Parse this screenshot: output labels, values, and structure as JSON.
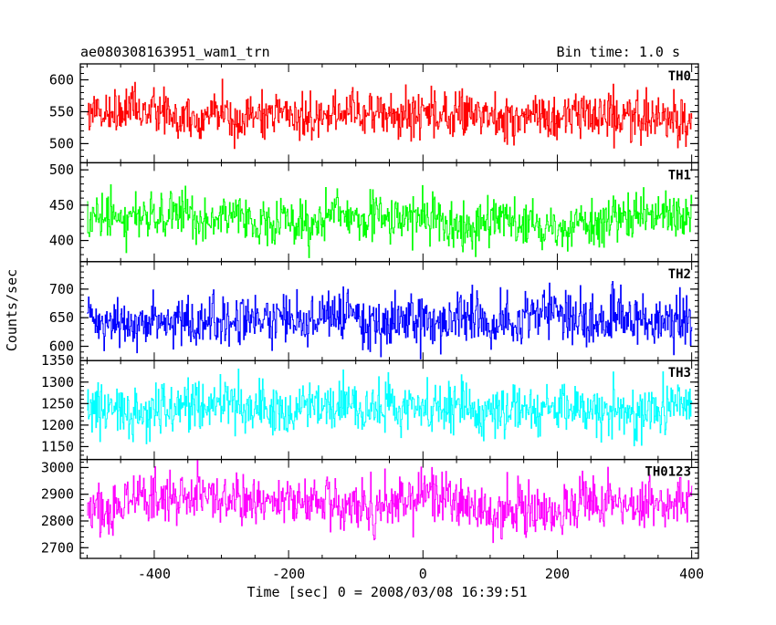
{
  "header": {
    "title": "ae080308163951_wam1_trn",
    "bin_time": "Bin time: 1.0 s"
  },
  "chart_data": {
    "type": "line",
    "xlabel": "Time [sec] 0 = 2008/03/08 16:39:51",
    "ylabel": "Counts/sec",
    "xlim": [
      -510,
      410
    ],
    "xticks": [
      -400,
      -200,
      0,
      200,
      400
    ],
    "x_start": -500,
    "x_end": 400,
    "x_step": 1,
    "panels": [
      {
        "name": "TH0",
        "color": "#ff0000",
        "ylim": [
          470,
          625
        ],
        "yticks": [
          500,
          550,
          600
        ],
        "mean": 545,
        "spread": 20
      },
      {
        "name": "TH1",
        "color": "#00ff00",
        "ylim": [
          370,
          510
        ],
        "yticks": [
          400,
          450,
          500
        ],
        "mean": 430,
        "spread": 18
      },
      {
        "name": "TH2",
        "color": "#0000ff",
        "ylim": [
          575,
          748
        ],
        "yticks": [
          600,
          650,
          700
        ],
        "mean": 650,
        "spread": 25
      },
      {
        "name": "TH3",
        "color": "#00ffff",
        "ylim": [
          1120,
          1350
        ],
        "yticks": [
          1150,
          1200,
          1250,
          1300,
          1350
        ],
        "mean": 1240,
        "spread": 33
      },
      {
        "name": "TH0123",
        "color": "#ff00ff",
        "ylim": [
          2660,
          3030
        ],
        "yticks": [
          2700,
          2800,
          2900,
          3000
        ],
        "mean": 2860,
        "spread": 55
      }
    ]
  }
}
